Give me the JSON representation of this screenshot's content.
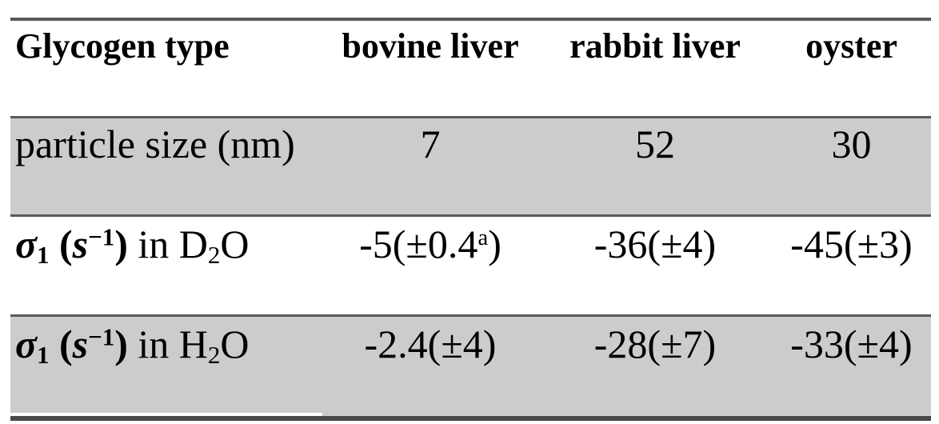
{
  "header": {
    "glycogen_type": "Glycogen type",
    "bovine_liver": "bovine liver",
    "rabbit_liver": "rabbit liver",
    "oyster": "oyster"
  },
  "particle_row": {
    "label": "particle size (nm)",
    "bovine": "7",
    "rabbit": "52",
    "oyster": "30"
  },
  "sigma_d2o_row": {
    "sigma": "σ",
    "sigma_sub": "1",
    "s_open": "(",
    "s": "s",
    "s_sup": "−1",
    "s_close": ")",
    "medium_prefix": "in D",
    "medium_sub": "2",
    "medium_tail": "O",
    "bovine": {
      "pre": "-5(",
      "pm": "±",
      "val": "0.4",
      "sup": "a",
      "post": ")"
    },
    "rabbit": {
      "pre": "-36(",
      "pm": "±",
      "val": "4",
      "sup": "",
      "post": ")"
    },
    "oyster": {
      "pre": "-45(",
      "pm": "±",
      "val": "3",
      "sup": "",
      "post": ")"
    }
  },
  "sigma_h2o_row": {
    "sigma": "σ",
    "sigma_sub": "1",
    "s_open": "(",
    "s": "s",
    "s_sup": "−1",
    "s_close": ")",
    "medium_prefix": "in H",
    "medium_sub": "2",
    "medium_tail": "O",
    "bovine": {
      "pre": "-2.4(",
      "pm": "±",
      "val": "4",
      "sup": "",
      "post": ")"
    },
    "rabbit": {
      "pre": "-28(",
      "pm": "±",
      "val": "7",
      "sup": "",
      "post": ")"
    },
    "oyster": {
      "pre": "-33(",
      "pm": "±",
      "val": "4",
      "sup": "",
      "post": ")"
    }
  },
  "colors": {
    "row_shade": "#cccccc",
    "rule": "#595959",
    "rule_bottom": "#4a4a4a",
    "text": "#000000",
    "background": "#ffffff"
  }
}
